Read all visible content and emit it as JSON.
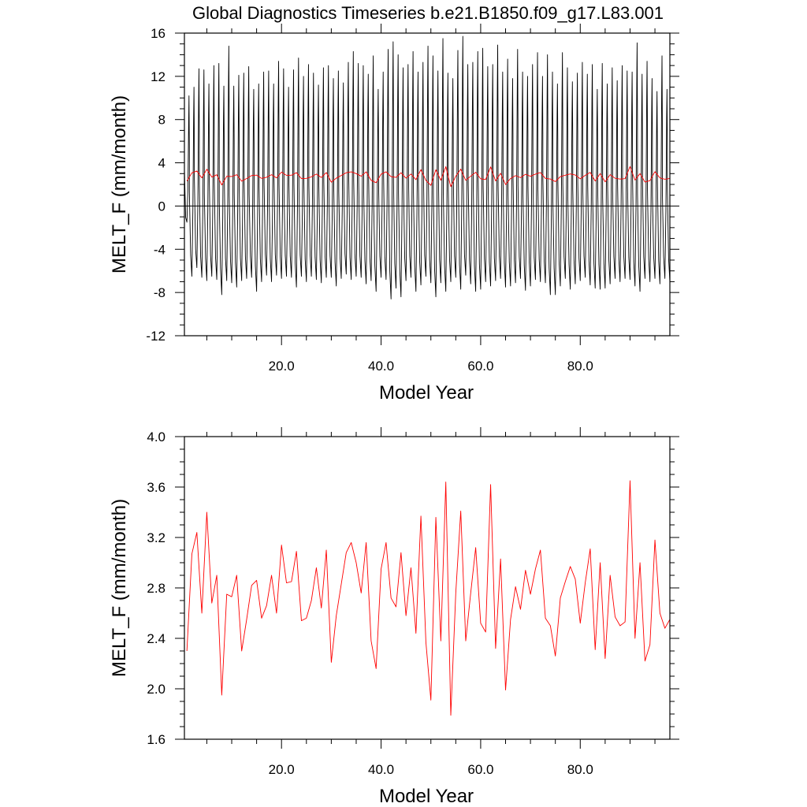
{
  "figure_title": "Global Diagnostics Timeseries b.e21.B1850.f09_g17.L83.001",
  "colors": {
    "monthly_series": "#000000",
    "annual_series": "#ff0000",
    "axes": "#000000"
  },
  "chart_data": [
    {
      "type": "line",
      "title": "Global Diagnostics Timeseries b.e21.B1850.f09_g17.L83.001",
      "xlabel": "Model Year",
      "ylabel": "MELT_F (mm/month)",
      "xlim": [
        0.5,
        98
      ],
      "ylim": [
        -12,
        16
      ],
      "x_ticks": [
        20,
        40,
        60,
        80
      ],
      "x_tick_labels": [
        "20.0",
        "40.0",
        "60.0",
        "80.0"
      ],
      "y_ticks": [
        -12,
        -8,
        -4,
        0,
        4,
        8,
        12,
        16
      ],
      "y_tick_labels": [
        "-12",
        "-8",
        "-4",
        "0",
        "4",
        "8",
        "12",
        "16"
      ],
      "reference_line_y": 0,
      "grid": false,
      "series": [
        {
          "description": "monthly values oscillating each year",
          "color": "#000000",
          "annual_peak_values": [
            10.2,
            11.0,
            12.7,
            12.6,
            11.3,
            13.0,
            13.2,
            11.1,
            14.8,
            11.1,
            12.1,
            12.3,
            12.9,
            10.8,
            11.3,
            12.4,
            12.5,
            11.3,
            13.4,
            12.7,
            11.0,
            12.6,
            13.7,
            12.0,
            13.1,
            12.3,
            11.2,
            12.8,
            13.0,
            11.8,
            12.5,
            11.4,
            13.3,
            14.3,
            13.2,
            13.0,
            12.2,
            13.9,
            10.8,
            12.4,
            14.5,
            15.2,
            14.0,
            12.8,
            13.1,
            14.3,
            12.4,
            13.3,
            14.8,
            13.9,
            12.5,
            15.5,
            12.3,
            11.8,
            14.4,
            15.7,
            13.1,
            13.3,
            14.3,
            14.6,
            12.9,
            13.1,
            14.9,
            12.4,
            13.6,
            11.8,
            14.5,
            12.4,
            12.0,
            13.1,
            14.2,
            12.0,
            14.0,
            12.4,
            11.3,
            14.2,
            12.8,
            11.5,
            12.3,
            13.3,
            12.2,
            13.1,
            10.8,
            13.2,
            11.3,
            12.8,
            11.6,
            13.0,
            12.5,
            12.4,
            15.1,
            12.2,
            13.4,
            11.8,
            10.6,
            13.9,
            10.8,
            12.1
          ],
          "annual_trough_values": [
            -1.5,
            -6.5,
            -5.7,
            -6.6,
            -6.9,
            -6.5,
            -6.8,
            -8.2,
            -6.9,
            -7.1,
            -7.5,
            -6.9,
            -6.7,
            -6.6,
            -7.9,
            -7.0,
            -6.4,
            -7.0,
            -6.4,
            -6.7,
            -6.5,
            -6.6,
            -7.5,
            -6.5,
            -7.0,
            -6.5,
            -6.8,
            -7.1,
            -6.6,
            -6.6,
            -7.4,
            -6.7,
            -6.3,
            -6.8,
            -6.5,
            -6.6,
            -7.2,
            -6.9,
            -7.9,
            -6.6,
            -6.8,
            -8.6,
            -7.6,
            -8.4,
            -6.9,
            -6.6,
            -7.9,
            -7.3,
            -6.5,
            -7.1,
            -8.4,
            -7.1,
            -7.9,
            -7.0,
            -6.6,
            -7.7,
            -6.4,
            -7.2,
            -7.9,
            -7.7,
            -7.0,
            -7.4,
            -6.9,
            -6.7,
            -7.5,
            -7.4,
            -7.1,
            -6.7,
            -7.8,
            -7.4,
            -6.8,
            -7.0,
            -7.1,
            -8.2,
            -8.2,
            -7.4,
            -6.7,
            -7.7,
            -7.2,
            -6.9,
            -6.6,
            -7.3,
            -7.6,
            -7.7,
            -7.6,
            -7.2,
            -6.7,
            -7.0,
            -6.7,
            -6.8,
            -7.4,
            -7.9,
            -6.7,
            -7.0,
            -6.7,
            -7.2,
            -6.7,
            -7.0
          ]
        },
        {
          "description": "annual mean",
          "color": "#ff0000",
          "reuse_values_of": "annual_mean"
        }
      ]
    },
    {
      "type": "line",
      "xlabel": "Model Year",
      "ylabel": "MELT_F (mm/month)",
      "xlim": [
        0.5,
        98
      ],
      "ylim": [
        1.6,
        4.0
      ],
      "x_ticks": [
        20,
        40,
        60,
        80
      ],
      "x_tick_labels": [
        "20.0",
        "40.0",
        "60.0",
        "80.0"
      ],
      "y_ticks": [
        1.6,
        2.0,
        2.4,
        2.8,
        3.2,
        3.6,
        4.0
      ],
      "y_tick_labels": [
        "1.6",
        "2.0",
        "2.4",
        "2.8",
        "3.2",
        "3.6",
        "4.0"
      ],
      "grid": false,
      "series": [
        {
          "color": "#ff0000",
          "x": [
            1,
            2,
            3,
            4,
            5,
            6,
            7,
            8,
            9,
            10,
            11,
            12,
            13,
            14,
            15,
            16,
            17,
            18,
            19,
            20,
            21,
            22,
            23,
            24,
            25,
            26,
            27,
            28,
            29,
            30,
            31,
            32,
            33,
            34,
            35,
            36,
            37,
            38,
            39,
            40,
            41,
            42,
            43,
            44,
            45,
            46,
            47,
            48,
            49,
            50,
            51,
            52,
            53,
            54,
            55,
            56,
            57,
            58,
            59,
            60,
            61,
            62,
            63,
            64,
            65,
            66,
            67,
            68,
            69,
            70,
            71,
            72,
            73,
            74,
            75,
            76,
            77,
            78,
            79,
            80,
            81,
            82,
            83,
            84,
            85,
            86,
            87,
            88,
            89,
            90,
            91,
            92,
            93,
            94,
            95,
            96,
            97,
            98
          ],
          "values": [
            2.3,
            3.07,
            3.24,
            2.6,
            3.4,
            2.68,
            2.9,
            1.95,
            2.75,
            2.73,
            2.9,
            2.3,
            2.55,
            2.82,
            2.86,
            2.56,
            2.66,
            2.9,
            2.6,
            3.14,
            2.84,
            2.85,
            3.09,
            2.54,
            2.56,
            2.7,
            2.96,
            2.64,
            3.1,
            2.21,
            2.58,
            2.83,
            3.08,
            3.16,
            3.0,
            2.76,
            3.16,
            2.38,
            2.16,
            2.95,
            3.16,
            2.72,
            2.65,
            3.08,
            2.58,
            2.96,
            2.44,
            3.37,
            2.37,
            1.91,
            3.36,
            2.38,
            3.64,
            1.79,
            2.76,
            3.41,
            2.38,
            2.76,
            3.12,
            2.52,
            2.45,
            3.62,
            2.32,
            3.03,
            1.99,
            2.55,
            2.81,
            2.63,
            2.94,
            2.75,
            2.95,
            3.1,
            2.56,
            2.5,
            2.26,
            2.72,
            2.85,
            2.97,
            2.87,
            2.52,
            2.84,
            3.11,
            2.31,
            3.0,
            2.24,
            2.9,
            2.57,
            2.5,
            2.53,
            3.65,
            2.4,
            3.0,
            2.22,
            2.35,
            3.18,
            2.6,
            2.48,
            2.55
          ]
        }
      ]
    }
  ]
}
